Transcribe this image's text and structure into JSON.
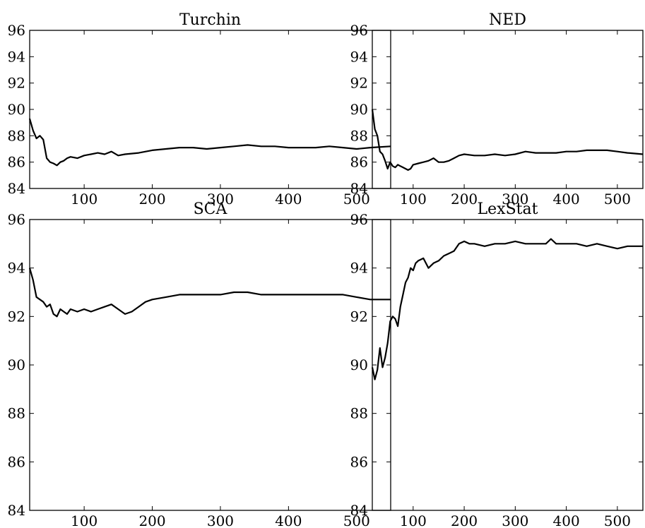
{
  "chart_data": [
    {
      "type": "line",
      "title": "Turchin",
      "xlabel": "",
      "ylabel": "",
      "xlim": [
        20,
        550
      ],
      "ylim": [
        84,
        96
      ],
      "xticks": [
        100,
        200,
        300,
        400,
        500
      ],
      "yticks": [
        84,
        86,
        88,
        90,
        92,
        94,
        96
      ],
      "grid": false,
      "series": [
        {
          "x": [
            20,
            25,
            30,
            35,
            40,
            45,
            50,
            55,
            60,
            65,
            70,
            75,
            80,
            90,
            100,
            110,
            120,
            130,
            140,
            150,
            160,
            180,
            200,
            220,
            240,
            260,
            280,
            300,
            320,
            340,
            360,
            380,
            400,
            420,
            440,
            460,
            480,
            500,
            520,
            550
          ],
          "y": [
            89.3,
            88.4,
            87.8,
            88.0,
            87.7,
            86.3,
            86.0,
            85.9,
            85.75,
            86.0,
            86.1,
            86.3,
            86.4,
            86.3,
            86.5,
            86.6,
            86.7,
            86.6,
            86.8,
            86.5,
            86.6,
            86.7,
            86.9,
            87.0,
            87.1,
            87.1,
            87.0,
            87.1,
            87.2,
            87.3,
            87.2,
            87.2,
            87.1,
            87.1,
            87.1,
            87.2,
            87.1,
            87.0,
            87.1,
            87.2
          ]
        }
      ]
    },
    {
      "type": "line",
      "title": "NED",
      "xlabel": "",
      "ylabel": "",
      "xlim": [
        20,
        550
      ],
      "ylim": [
        84,
        96
      ],
      "xticks": [
        100,
        200,
        300,
        400,
        500
      ],
      "yticks": [
        84,
        86,
        88,
        90,
        92,
        94,
        96
      ],
      "grid": false,
      "series": [
        {
          "x": [
            20,
            25,
            30,
            35,
            40,
            45,
            50,
            55,
            60,
            65,
            70,
            75,
            80,
            85,
            90,
            95,
            100,
            110,
            120,
            130,
            140,
            150,
            160,
            170,
            180,
            190,
            200,
            220,
            240,
            260,
            280,
            300,
            320,
            340,
            360,
            380,
            400,
            420,
            440,
            460,
            480,
            500,
            520,
            550
          ],
          "y": [
            90.0,
            88.5,
            88.0,
            86.8,
            86.6,
            86.1,
            85.5,
            86.0,
            85.7,
            85.6,
            85.8,
            85.7,
            85.6,
            85.5,
            85.4,
            85.5,
            85.8,
            85.9,
            86.0,
            86.1,
            86.3,
            86.0,
            86.0,
            86.1,
            86.3,
            86.5,
            86.6,
            86.5,
            86.5,
            86.6,
            86.5,
            86.6,
            86.8,
            86.7,
            86.7,
            86.7,
            86.8,
            86.8,
            86.9,
            86.9,
            86.9,
            86.8,
            86.7,
            86.6
          ]
        }
      ]
    },
    {
      "type": "line",
      "title": "SCA",
      "xlabel": "",
      "ylabel": "",
      "xlim": [
        20,
        550
      ],
      "ylim": [
        84,
        96
      ],
      "xticks": [
        100,
        200,
        300,
        400,
        500
      ],
      "yticks": [
        84,
        86,
        88,
        90,
        92,
        94,
        96
      ],
      "grid": false,
      "series": [
        {
          "x": [
            20,
            25,
            30,
            35,
            40,
            45,
            50,
            55,
            60,
            65,
            70,
            75,
            80,
            90,
            100,
            110,
            120,
            130,
            140,
            150,
            160,
            170,
            180,
            190,
            200,
            220,
            240,
            260,
            280,
            300,
            320,
            340,
            360,
            380,
            400,
            420,
            440,
            460,
            480,
            500,
            520,
            550
          ],
          "y": [
            94.0,
            93.5,
            92.8,
            92.7,
            92.6,
            92.4,
            92.5,
            92.1,
            92.0,
            92.3,
            92.2,
            92.1,
            92.3,
            92.2,
            92.3,
            92.2,
            92.3,
            92.4,
            92.5,
            92.3,
            92.1,
            92.2,
            92.4,
            92.6,
            92.7,
            92.8,
            92.9,
            92.9,
            92.9,
            92.9,
            93.0,
            93.0,
            92.9,
            92.9,
            92.9,
            92.9,
            92.9,
            92.9,
            92.9,
            92.8,
            92.7,
            92.7
          ]
        }
      ]
    },
    {
      "type": "line",
      "title": "LexStat",
      "xlabel": "",
      "ylabel": "",
      "xlim": [
        20,
        550
      ],
      "ylim": [
        84,
        96
      ],
      "xticks": [
        100,
        200,
        300,
        400,
        500
      ],
      "yticks": [
        84,
        86,
        88,
        90,
        92,
        94,
        96
      ],
      "grid": false,
      "series": [
        {
          "x": [
            20,
            25,
            30,
            35,
            40,
            45,
            50,
            55,
            60,
            65,
            70,
            75,
            80,
            85,
            90,
            95,
            100,
            105,
            110,
            120,
            130,
            140,
            150,
            160,
            170,
            180,
            190,
            200,
            210,
            220,
            240,
            260,
            280,
            300,
            320,
            340,
            360,
            370,
            380,
            400,
            420,
            440,
            460,
            480,
            500,
            520,
            550
          ],
          "y": [
            89.9,
            89.4,
            89.8,
            90.7,
            89.9,
            90.3,
            90.9,
            91.8,
            92.0,
            91.9,
            91.6,
            92.4,
            92.9,
            93.4,
            93.6,
            94.0,
            93.9,
            94.2,
            94.3,
            94.4,
            94.0,
            94.2,
            94.3,
            94.5,
            94.6,
            94.7,
            95.0,
            95.1,
            95.0,
            95.0,
            94.9,
            95.0,
            95.0,
            95.1,
            95.0,
            95.0,
            95.0,
            95.2,
            95.0,
            95.0,
            95.0,
            94.9,
            95.0,
            94.9,
            94.8,
            94.9,
            94.9
          ]
        }
      ]
    }
  ]
}
